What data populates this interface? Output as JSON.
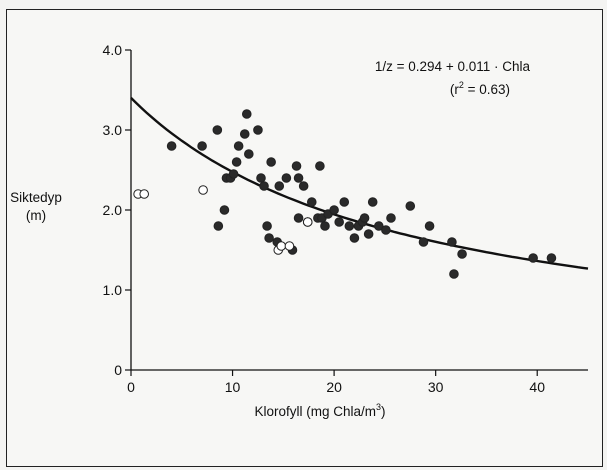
{
  "chart_data": {
    "type": "scatter",
    "title": "",
    "ylabel_line1": "Siktedyp",
    "ylabel_line2": "(m)",
    "xlabel_prefix": "Klorofyll (mg Chla/m",
    "xlabel_sup": "3",
    "xlabel_suffix": ")",
    "xlim": [
      0,
      45
    ],
    "ylim": [
      0,
      4.0
    ],
    "x_ticks": [
      0,
      10,
      20,
      30,
      40
    ],
    "x_tick_labels": [
      "0",
      "10",
      "20",
      "30",
      "40"
    ],
    "y_ticks": [
      0,
      1.0,
      2.0,
      3.0,
      4.0
    ],
    "y_tick_labels": [
      "0",
      "1.0",
      "2.0",
      "3.0",
      "4.0"
    ],
    "grid": false,
    "equation_line1": "1/z = 0.294 + 0.011 · Chla",
    "equation_line2_prefix": "(r",
    "equation_line2_sup": "2",
    "equation_line2_suffix": " = 0.63)",
    "fit": {
      "type": "reciprocal",
      "intercept": 0.294,
      "slope": 0.011
    },
    "series": [
      {
        "marker": "filled",
        "points": [
          [
            4.0,
            2.8
          ],
          [
            7.0,
            2.8
          ],
          [
            8.5,
            3.0
          ],
          [
            8.6,
            1.8
          ],
          [
            9.2,
            2.0
          ],
          [
            9.4,
            2.4
          ],
          [
            9.8,
            2.4
          ],
          [
            10.1,
            2.45
          ],
          [
            10.4,
            2.6
          ],
          [
            10.6,
            2.8
          ],
          [
            11.2,
            2.95
          ],
          [
            11.4,
            3.2
          ],
          [
            11.6,
            2.7
          ],
          [
            12.5,
            3.0
          ],
          [
            12.8,
            2.4
          ],
          [
            13.1,
            2.3
          ],
          [
            13.4,
            1.8
          ],
          [
            13.6,
            1.65
          ],
          [
            13.8,
            2.6
          ],
          [
            14.4,
            1.6
          ],
          [
            14.6,
            2.3
          ],
          [
            15.3,
            2.4
          ],
          [
            15.9,
            1.5
          ],
          [
            16.3,
            2.55
          ],
          [
            16.5,
            2.4
          ],
          [
            16.5,
            1.9
          ],
          [
            17.0,
            2.3
          ],
          [
            17.4,
            1.85
          ],
          [
            17.8,
            2.1
          ],
          [
            18.4,
            1.9
          ],
          [
            18.6,
            2.55
          ],
          [
            18.8,
            1.9
          ],
          [
            19.1,
            1.8
          ],
          [
            19.4,
            1.95
          ],
          [
            20.0,
            2.0
          ],
          [
            20.5,
            1.85
          ],
          [
            21.0,
            2.1
          ],
          [
            21.5,
            1.8
          ],
          [
            22.0,
            1.65
          ],
          [
            22.4,
            1.8
          ],
          [
            22.8,
            1.85
          ],
          [
            23.0,
            1.9
          ],
          [
            23.4,
            1.7
          ],
          [
            23.8,
            2.1
          ],
          [
            24.4,
            1.8
          ],
          [
            25.1,
            1.75
          ],
          [
            25.6,
            1.9
          ],
          [
            27.5,
            2.05
          ],
          [
            28.8,
            1.6
          ],
          [
            29.4,
            1.8
          ],
          [
            31.6,
            1.6
          ],
          [
            31.8,
            1.2
          ],
          [
            32.6,
            1.45
          ],
          [
            39.6,
            1.4
          ],
          [
            41.4,
            1.4
          ]
        ]
      },
      {
        "marker": "open",
        "points": [
          [
            0.7,
            2.2
          ],
          [
            1.3,
            2.2
          ],
          [
            7.1,
            2.25
          ],
          [
            14.5,
            1.5
          ],
          [
            14.8,
            1.55
          ],
          [
            15.6,
            1.55
          ],
          [
            17.4,
            1.85
          ]
        ]
      }
    ]
  }
}
